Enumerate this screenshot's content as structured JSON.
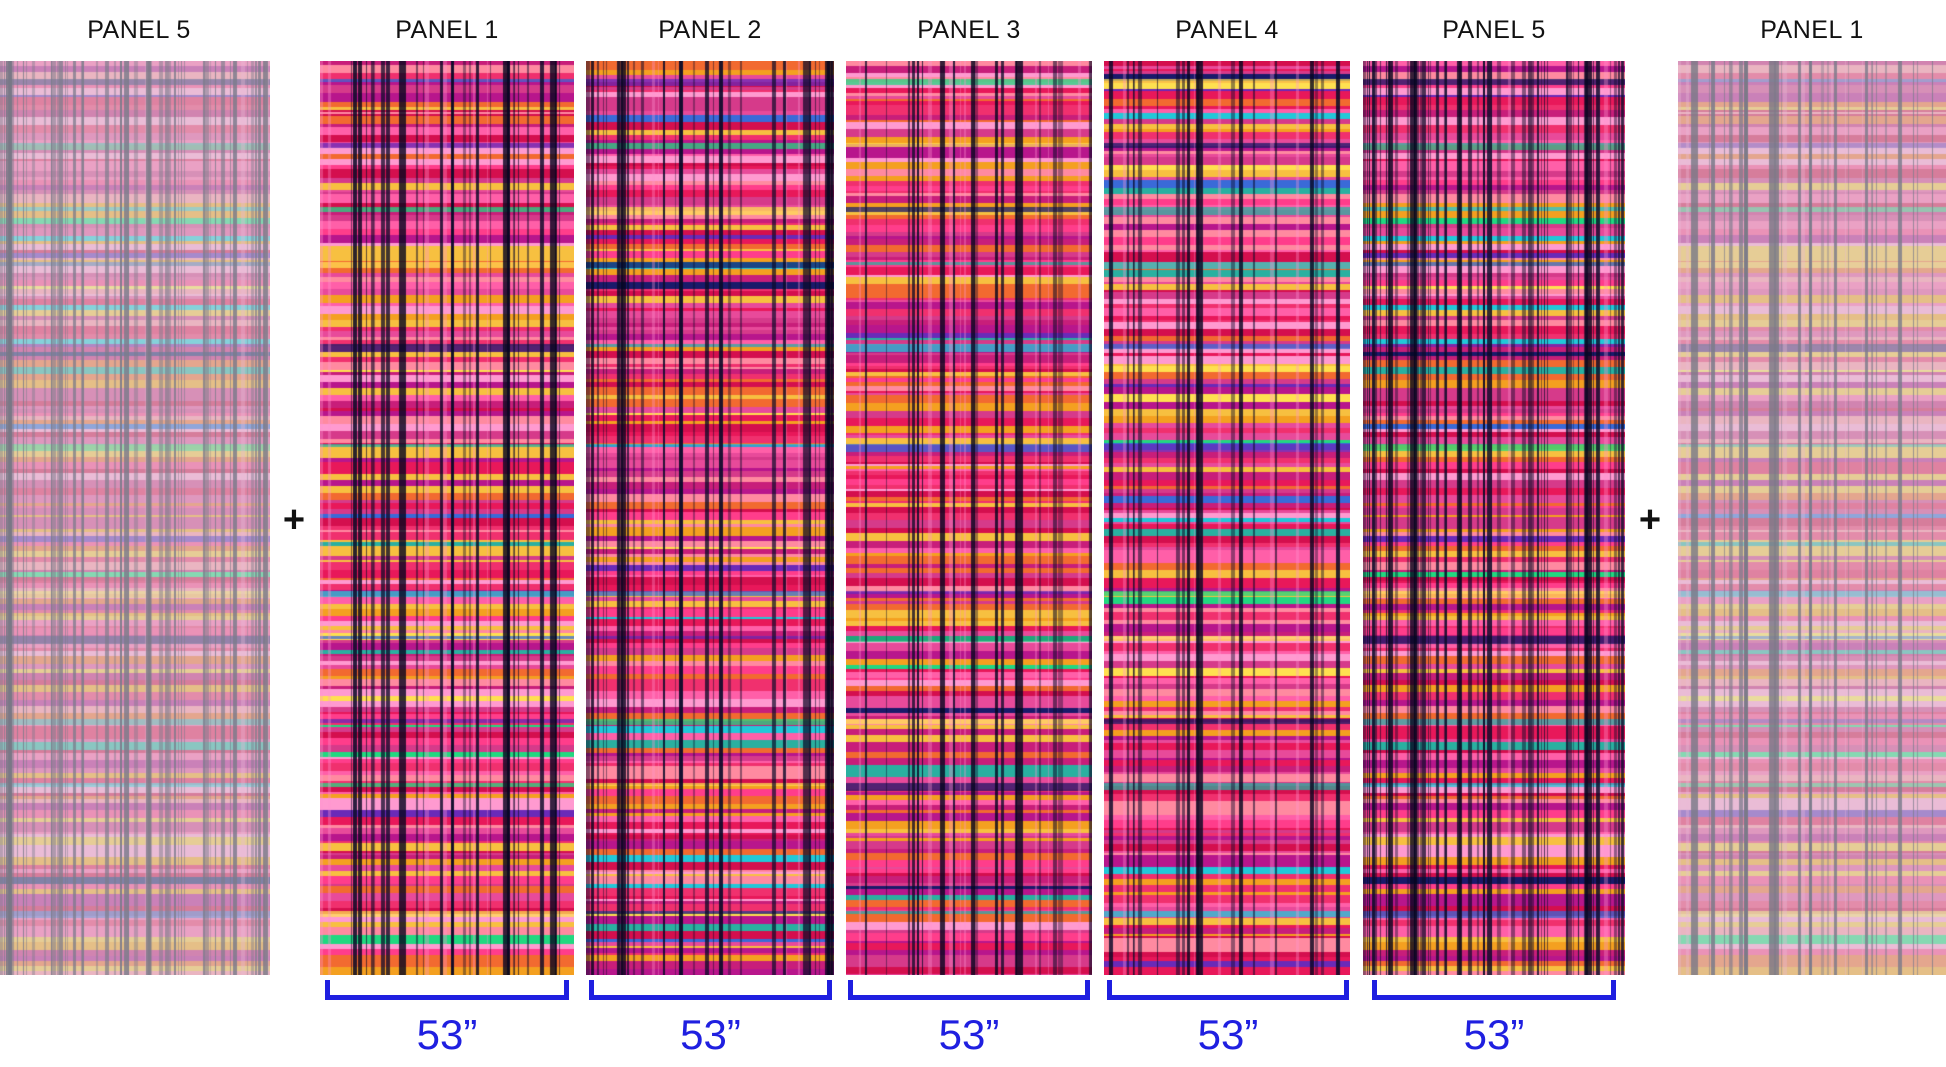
{
  "panels": [
    {
      "id": "ghost-left",
      "label": "PANEL 5",
      "kind": "ghost",
      "seed": 5
    },
    {
      "id": "p1",
      "label": "PANEL 1",
      "kind": "main",
      "seed": 1
    },
    {
      "id": "p2",
      "label": "PANEL 2",
      "kind": "main",
      "seed": 2
    },
    {
      "id": "p3",
      "label": "PANEL 3",
      "kind": "main",
      "seed": 3
    },
    {
      "id": "p4",
      "label": "PANEL 4",
      "kind": "main",
      "seed": 4
    },
    {
      "id": "p5",
      "label": "PANEL 5",
      "kind": "main",
      "seed": 5
    },
    {
      "id": "ghost-right",
      "label": "PANEL 1",
      "kind": "ghost",
      "seed": 1
    }
  ],
  "plus_sign": "+",
  "widths": [
    "53”",
    "53”",
    "53”",
    "53”",
    "53”"
  ],
  "colors": {
    "accent": "#1f1fe0",
    "label_text": "#111111"
  }
}
